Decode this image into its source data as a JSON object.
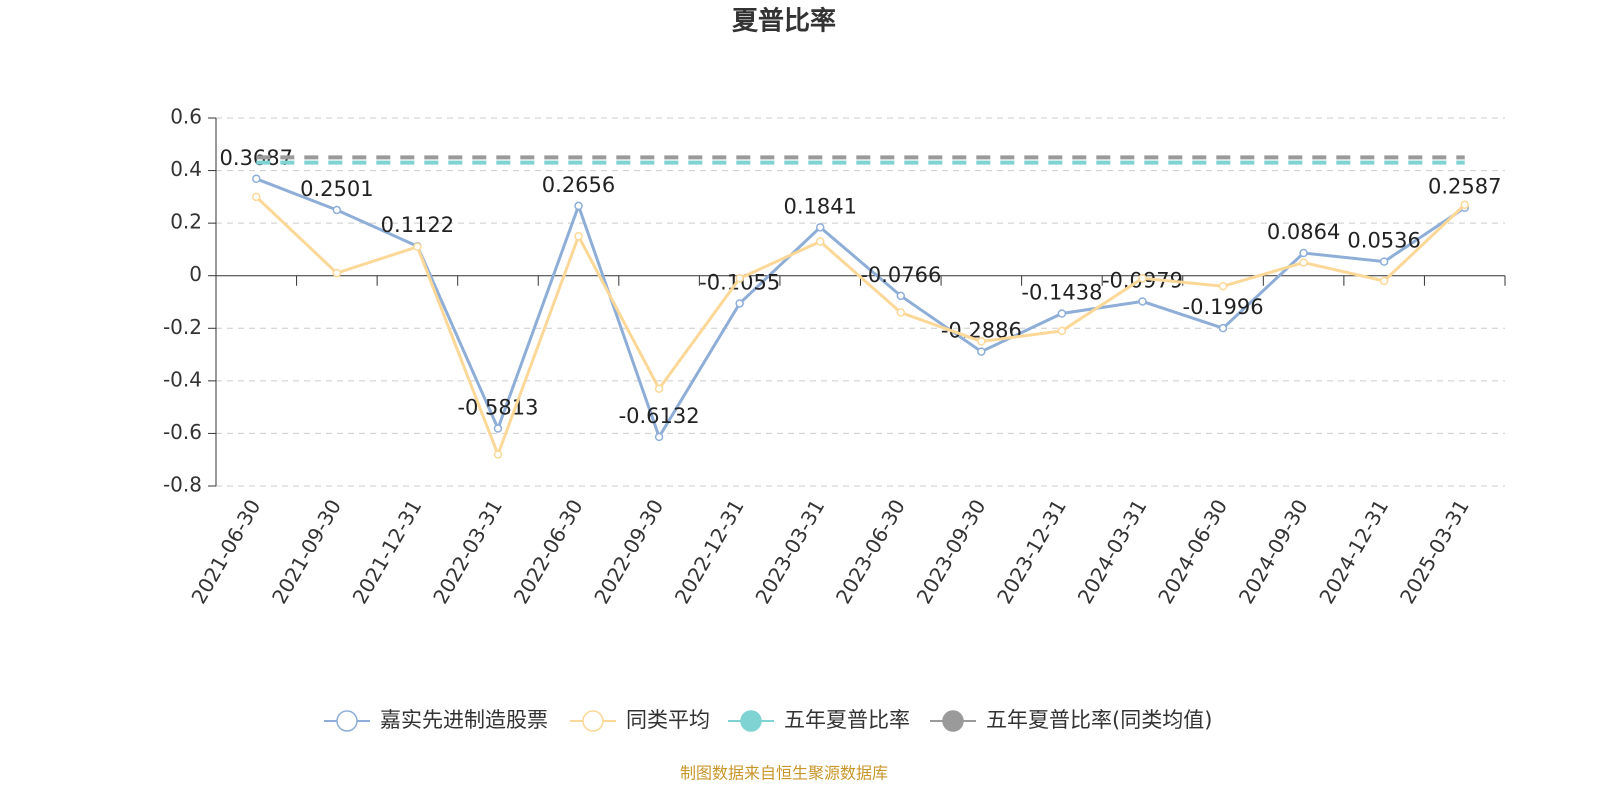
{
  "chart_data": {
    "type": "line",
    "title": "夏普比率",
    "categories": [
      "2021-06-30",
      "2021-09-30",
      "2021-12-31",
      "2022-03-31",
      "2022-06-30",
      "2022-09-30",
      "2022-12-31",
      "2023-03-31",
      "2023-06-30",
      "2023-09-30",
      "2023-12-31",
      "2024-03-31",
      "2024-06-30",
      "2024-09-30",
      "2024-12-31",
      "2025-03-31"
    ],
    "series": [
      {
        "name": "嘉实先进制造股票",
        "color": "#8eaed8",
        "values": [
          0.3687,
          0.2501,
          0.1122,
          -0.5813,
          0.2656,
          -0.6132,
          -0.1055,
          0.1841,
          -0.0766,
          -0.2886,
          -0.1438,
          -0.0979,
          -0.1996,
          0.0864,
          0.0536,
          0.2587
        ]
      },
      {
        "name": "同类平均",
        "color": "#fbd898",
        "values": [
          0.3,
          0.01,
          0.11,
          -0.68,
          0.15,
          -0.43,
          -0.01,
          0.13,
          -0.14,
          -0.25,
          -0.21,
          -0.01,
          -0.04,
          0.05,
          -0.02,
          0.27
        ]
      },
      {
        "name": "五年夏普比率",
        "color": "#7fd3d3",
        "values": [
          0.43,
          0.43,
          0.43,
          0.43,
          0.43,
          0.43,
          0.43,
          0.43,
          0.43,
          0.43,
          0.43,
          0.43,
          0.43,
          0.43,
          0.43,
          0.43
        ]
      },
      {
        "name": "五年夏普比率(同类均值)",
        "color": "#9a9a9a",
        "values": [
          0.45,
          0.45,
          0.45,
          0.45,
          0.45,
          0.45,
          0.45,
          0.45,
          0.45,
          0.45,
          0.45,
          0.45,
          0.45,
          0.45,
          0.45,
          0.45
        ]
      }
    ],
    "ylim": [
      -0.8,
      0.6
    ],
    "yticks": [
      -0.8,
      -0.6,
      -0.4,
      -0.2,
      0,
      0.2,
      0.4,
      0.6
    ],
    "grid": true,
    "legend": "bottom",
    "source": "制图数据来自恒生聚源数据库"
  }
}
